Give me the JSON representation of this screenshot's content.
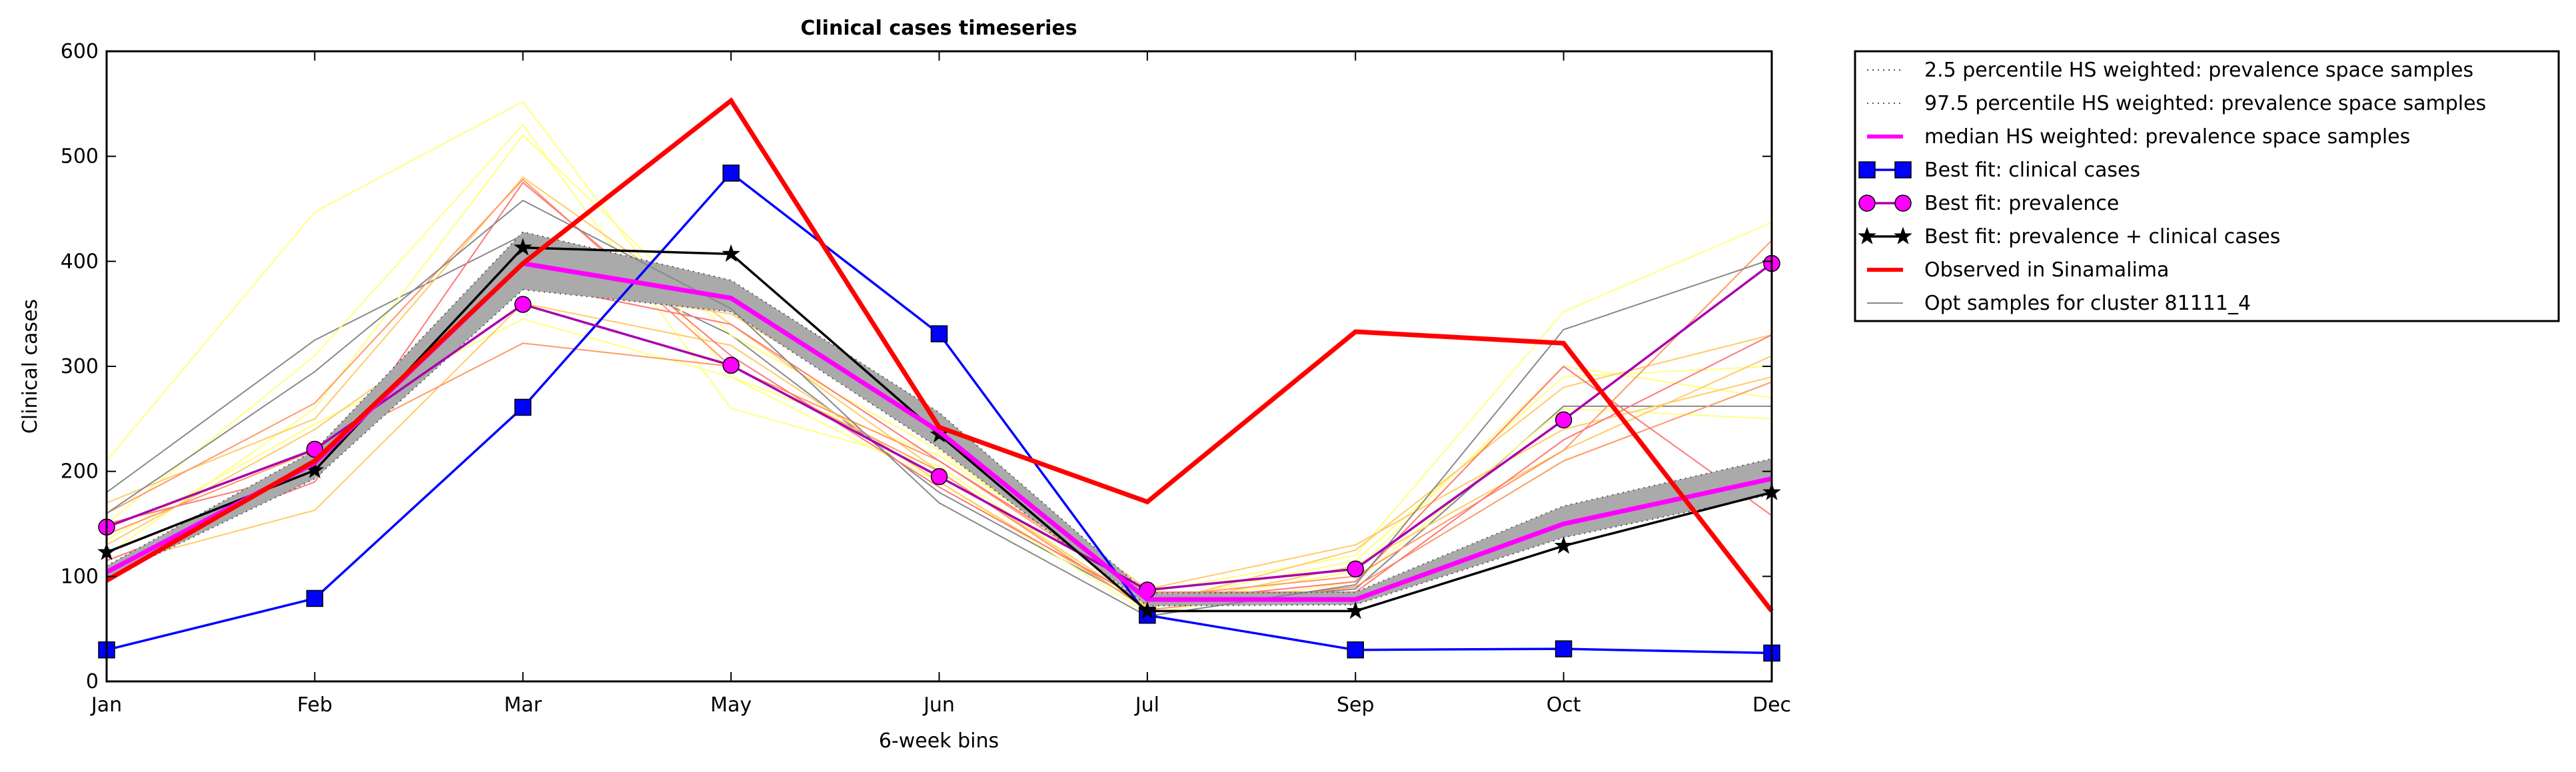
{
  "chart_data": {
    "type": "line",
    "title": "Clinical cases timeseries",
    "xlabel": "6-week bins",
    "ylabel": "Clinical cases",
    "categories": [
      "Jan",
      "Feb",
      "Mar",
      "May",
      "Jun",
      "Jul",
      "Sep",
      "Oct",
      "Dec"
    ],
    "ylim": [
      0,
      600
    ],
    "yticks": [
      0,
      100,
      200,
      300,
      400,
      500,
      600
    ],
    "grid": false,
    "legend_position": "outside-top-right",
    "band": {
      "lower": [
        98,
        193,
        373,
        352,
        222,
        72,
        73,
        137,
        178
      ],
      "upper": [
        110,
        220,
        428,
        382,
        256,
        84,
        85,
        167,
        212
      ],
      "color": "#aaaaaa"
    },
    "series": [
      {
        "name": "2.5 percentile HS weighted: prevalence space samples",
        "style": "dotted",
        "color": "#555555",
        "values": [
          98,
          193,
          373,
          352,
          222,
          72,
          73,
          137,
          178
        ]
      },
      {
        "name": "97.5 percentile HS weighted: prevalence space samples",
        "style": "dotted",
        "color": "#555555",
        "values": [
          110,
          220,
          428,
          382,
          256,
          84,
          85,
          167,
          212
        ]
      },
      {
        "name": "median HS weighted: prevalence space samples",
        "style": "solid",
        "color": "#ff00ff",
        "marker": "none",
        "values": [
          104,
          208,
          398,
          365,
          238,
          78,
          78,
          150,
          193
        ]
      },
      {
        "name": "Best fit: clinical cases",
        "style": "solid",
        "color": "#0000ff",
        "marker": "square",
        "values": [
          30,
          79,
          261,
          484,
          331,
          63,
          30,
          31,
          27
        ]
      },
      {
        "name": "Best fit: prevalence",
        "style": "solid",
        "color": "#aa00aa",
        "marker": "circle",
        "values": [
          147,
          221,
          359,
          301,
          195,
          87,
          107,
          249,
          398
        ]
      },
      {
        "name": "Best fit: prevalence + clinical cases",
        "style": "solid",
        "color": "#000000",
        "marker": "star",
        "values": [
          123,
          201,
          413,
          407,
          235,
          67,
          67,
          129,
          180
        ]
      },
      {
        "name": "Observed in Sinamalima",
        "style": "solid",
        "color": "#ff0000",
        "marker": "none",
        "values": [
          96,
          210,
          398,
          553,
          242,
          171,
          333,
          322,
          67
        ]
      },
      {
        "name": "Opt samples for cluster 81111_4",
        "style": "solid",
        "color": "#888888",
        "marker": "none",
        "values": [
          160,
          295,
          458,
          355,
          170,
          62,
          92,
          335,
          402
        ]
      }
    ],
    "samples": [
      {
        "color": "#888888",
        "values": [
          180,
          325,
          425,
          330,
          180,
          72,
          88,
          262,
          262
        ]
      },
      {
        "color": "#ffff80",
        "values": [
          210,
          447,
          552,
          290,
          215,
          85,
          120,
          352,
          437
        ]
      },
      {
        "color": "#ffff80",
        "values": [
          150,
          310,
          530,
          260,
          205,
          70,
          105,
          300,
          270
        ]
      },
      {
        "color": "#ffff80",
        "values": [
          120,
          260,
          520,
          330,
          220,
          75,
          115,
          290,
          300
        ]
      },
      {
        "color": "#ffff80",
        "values": [
          135,
          245,
          345,
          290,
          190,
          65,
          95,
          260,
          250
        ]
      },
      {
        "color": "#ffcc66",
        "values": [
          170,
          250,
          480,
          340,
          200,
          72,
          125,
          280,
          330
        ]
      },
      {
        "color": "#ffcc66",
        "values": [
          110,
          163,
          360,
          320,
          190,
          70,
          110,
          220,
          310
        ]
      },
      {
        "color": "#ffcc66",
        "values": [
          130,
          240,
          380,
          350,
          230,
          88,
          130,
          240,
          290
        ]
      },
      {
        "color": "#ff9966",
        "values": [
          160,
          265,
          478,
          300,
          210,
          80,
          100,
          220,
          420
        ]
      },
      {
        "color": "#ff9966",
        "values": [
          140,
          220,
          322,
          300,
          200,
          68,
          90,
          210,
          285
        ]
      },
      {
        "color": "#ff7777",
        "values": [
          150,
          200,
          380,
          340,
          210,
          85,
          85,
          230,
          330
        ]
      },
      {
        "color": "#ff7777",
        "values": [
          115,
          190,
          475,
          310,
          185,
          75,
          95,
          300,
          158
        ]
      }
    ]
  }
}
